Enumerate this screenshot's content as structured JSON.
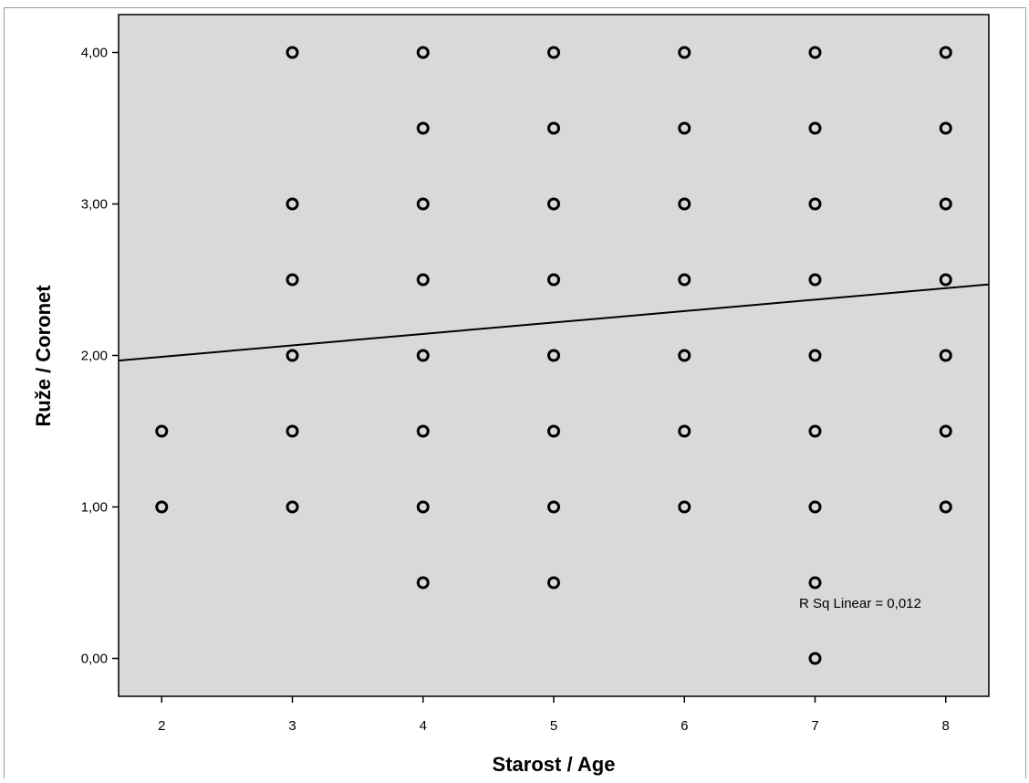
{
  "chart_data": {
    "type": "scatter",
    "title": "",
    "xlabel": "Starost / Age",
    "ylabel": "Ruže / Coronet",
    "xlim": [
      1.67,
      8.33
    ],
    "ylim": [
      -0.25,
      4.25
    ],
    "x_ticks": [
      2,
      3,
      4,
      5,
      6,
      7,
      8
    ],
    "x_tick_labels": [
      "2",
      "3",
      "4",
      "5",
      "6",
      "7",
      "8"
    ],
    "y_ticks": [
      0,
      1,
      2,
      3,
      4
    ],
    "y_tick_labels": [
      "0,00",
      "1,00",
      "2,00",
      "3,00",
      "4,00"
    ],
    "grid": false,
    "background": "#d9d9d9",
    "marker": "open-circle",
    "points": [
      [
        2,
        1.5
      ],
      [
        2,
        1.0
      ],
      [
        3,
        4.0
      ],
      [
        3,
        3.0
      ],
      [
        3,
        2.5
      ],
      [
        3,
        2.0
      ],
      [
        3,
        1.5
      ],
      [
        3,
        1.0
      ],
      [
        4,
        4.0
      ],
      [
        4,
        3.5
      ],
      [
        4,
        3.0
      ],
      [
        4,
        2.5
      ],
      [
        4,
        2.0
      ],
      [
        4,
        1.5
      ],
      [
        4,
        1.0
      ],
      [
        4,
        0.5
      ],
      [
        5,
        4.0
      ],
      [
        5,
        3.5
      ],
      [
        5,
        3.0
      ],
      [
        5,
        2.5
      ],
      [
        5,
        2.0
      ],
      [
        5,
        1.5
      ],
      [
        5,
        1.0
      ],
      [
        5,
        0.5
      ],
      [
        6,
        4.0
      ],
      [
        6,
        3.5
      ],
      [
        6,
        3.0
      ],
      [
        6,
        2.5
      ],
      [
        6,
        2.0
      ],
      [
        6,
        1.5
      ],
      [
        6,
        1.0
      ],
      [
        7,
        4.0
      ],
      [
        7,
        3.5
      ],
      [
        7,
        3.0
      ],
      [
        7,
        2.5
      ],
      [
        7,
        2.0
      ],
      [
        7,
        1.5
      ],
      [
        7,
        1.0
      ],
      [
        7,
        0.5
      ],
      [
        7,
        0.0
      ],
      [
        8,
        4.0
      ],
      [
        8,
        3.5
      ],
      [
        8,
        3.0
      ],
      [
        8,
        2.5
      ],
      [
        8,
        2.0
      ],
      [
        8,
        1.5
      ],
      [
        8,
        1.0
      ]
    ],
    "fit_line": {
      "type": "linear",
      "intercept": 1.84,
      "slope": 0.0755
    },
    "annotation": "R Sq Linear = 0,012"
  }
}
